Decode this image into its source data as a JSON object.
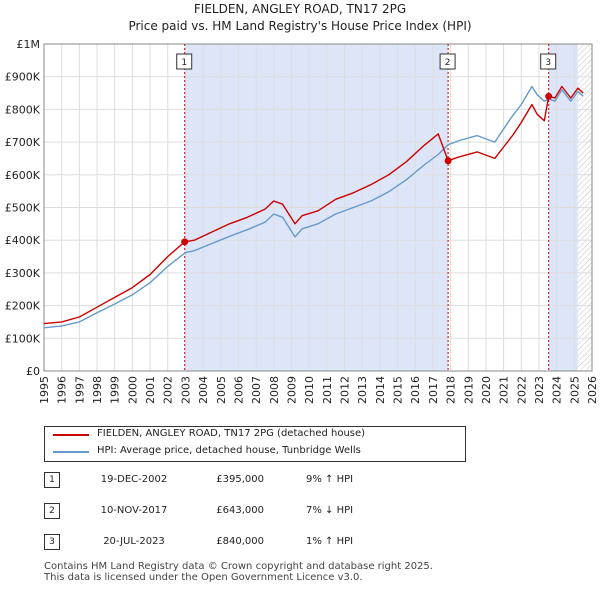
{
  "title": "FIELDEN, ANGLEY ROAD, TN17 2PG",
  "subtitle": "Price paid vs. HM Land Registry's House Price Index (HPI)",
  "colors": {
    "property": "#cc0000",
    "hpi": "#6699cc",
    "shade": "#dde6f8",
    "grid": "#dddddd",
    "hatch": "#999999"
  },
  "chart_data": {
    "type": "line",
    "title": "FIELDEN, ANGLEY ROAD, TN17 2PG",
    "subtitle": "Price paid vs. HM Land Registry's House Price Index (HPI)",
    "xlim": [
      1995,
      2026
    ],
    "ylim": [
      0,
      1000000
    ],
    "x_ticks": [
      1995,
      1996,
      1997,
      1998,
      1999,
      2000,
      2001,
      2002,
      2003,
      2004,
      2005,
      2006,
      2007,
      2008,
      2009,
      2010,
      2011,
      2012,
      2013,
      2014,
      2015,
      2016,
      2017,
      2018,
      2019,
      2020,
      2021,
      2022,
      2023,
      2024,
      2025,
      2026
    ],
    "y_ticks": [
      {
        "value": 0,
        "label": "£0"
      },
      {
        "value": 100000,
        "label": "£100K"
      },
      {
        "value": 200000,
        "label": "£200K"
      },
      {
        "value": 300000,
        "label": "£300K"
      },
      {
        "value": 400000,
        "label": "£400K"
      },
      {
        "value": 500000,
        "label": "£500K"
      },
      {
        "value": 600000,
        "label": "£600K"
      },
      {
        "value": 700000,
        "label": "£700K"
      },
      {
        "value": 800000,
        "label": "£800K"
      },
      {
        "value": 900000,
        "label": "£900K"
      },
      {
        "value": 1000000,
        "label": "£1M"
      }
    ],
    "grid": true,
    "forecast_from": 2025.2,
    "series": [
      {
        "name": "FIELDEN, ANGLEY ROAD, TN17 2PG (detached house)",
        "color": "#cc0000",
        "x": [
          1995.0,
          1996.0,
          1997.0,
          1998.0,
          1999.0,
          2000.0,
          2001.0,
          2002.0,
          2002.96,
          2003.5,
          2004.5,
          2005.5,
          2006.5,
          2007.5,
          2008.0,
          2008.5,
          2009.2,
          2009.6,
          2010.5,
          2011.5,
          2012.5,
          2013.5,
          2014.5,
          2015.5,
          2016.5,
          2017.3,
          2017.86,
          2018.5,
          2019.5,
          2020.5,
          2021.0,
          2021.5,
          2022.0,
          2022.6,
          2022.9,
          2023.3,
          2023.55,
          2023.9,
          2024.3,
          2024.8,
          2025.2,
          2025.5
        ],
        "y": [
          145000,
          150000,
          165000,
          195000,
          225000,
          255000,
          295000,
          350000,
          395000,
          400000,
          425000,
          450000,
          470000,
          495000,
          520000,
          510000,
          450000,
          475000,
          490000,
          525000,
          545000,
          570000,
          600000,
          640000,
          690000,
          725000,
          643000,
          655000,
          670000,
          650000,
          685000,
          720000,
          760000,
          815000,
          785000,
          765000,
          840000,
          835000,
          870000,
          835000,
          865000,
          850000
        ]
      },
      {
        "name": "HPI: Average price, detached house, Tunbridge Wells",
        "color": "#6699cc",
        "x": [
          1995.0,
          1996.0,
          1997.0,
          1998.0,
          1999.0,
          2000.0,
          2001.0,
          2002.0,
          2003.0,
          2003.5,
          2004.5,
          2005.5,
          2006.5,
          2007.5,
          2008.0,
          2008.5,
          2009.2,
          2009.6,
          2010.5,
          2011.5,
          2012.5,
          2013.5,
          2014.5,
          2015.5,
          2016.5,
          2017.3,
          2017.86,
          2018.5,
          2019.5,
          2020.5,
          2021.0,
          2021.5,
          2022.0,
          2022.6,
          2022.9,
          2023.3,
          2023.55,
          2023.9,
          2024.3,
          2024.8,
          2025.2,
          2025.5
        ],
        "y": [
          132000,
          138000,
          150000,
          178000,
          205000,
          233000,
          270000,
          320000,
          362000,
          368000,
          390000,
          412000,
          432000,
          455000,
          480000,
          470000,
          410000,
          435000,
          450000,
          480000,
          500000,
          520000,
          548000,
          585000,
          630000,
          662000,
          692000,
          705000,
          720000,
          700000,
          740000,
          780000,
          815000,
          870000,
          845000,
          825000,
          832000,
          825000,
          860000,
          825000,
          855000,
          840000
        ]
      }
    ],
    "sales": [
      {
        "n": 1,
        "x": 2002.96,
        "y": 395000
      },
      {
        "n": 2,
        "x": 2017.86,
        "y": 643000
      },
      {
        "n": 3,
        "x": 2023.55,
        "y": 840000
      }
    ]
  },
  "legend": {
    "property_label": "FIELDEN, ANGLEY ROAD, TN17 2PG (detached house)",
    "hpi_label": "HPI: Average price, detached house, Tunbridge Wells"
  },
  "sales_table": [
    {
      "n": "1",
      "date": "19-DEC-2002",
      "price": "£395,000",
      "hpi": "9% ↑ HPI"
    },
    {
      "n": "2",
      "date": "10-NOV-2017",
      "price": "£643,000",
      "hpi": "7% ↓ HPI"
    },
    {
      "n": "3",
      "date": "20-JUL-2023",
      "price": "£840,000",
      "hpi": "1% ↑ HPI"
    }
  ],
  "footer": {
    "line1": "Contains HM Land Registry data © Crown copyright and database right 2025.",
    "line2": "This data is licensed under the Open Government Licence v3.0."
  }
}
